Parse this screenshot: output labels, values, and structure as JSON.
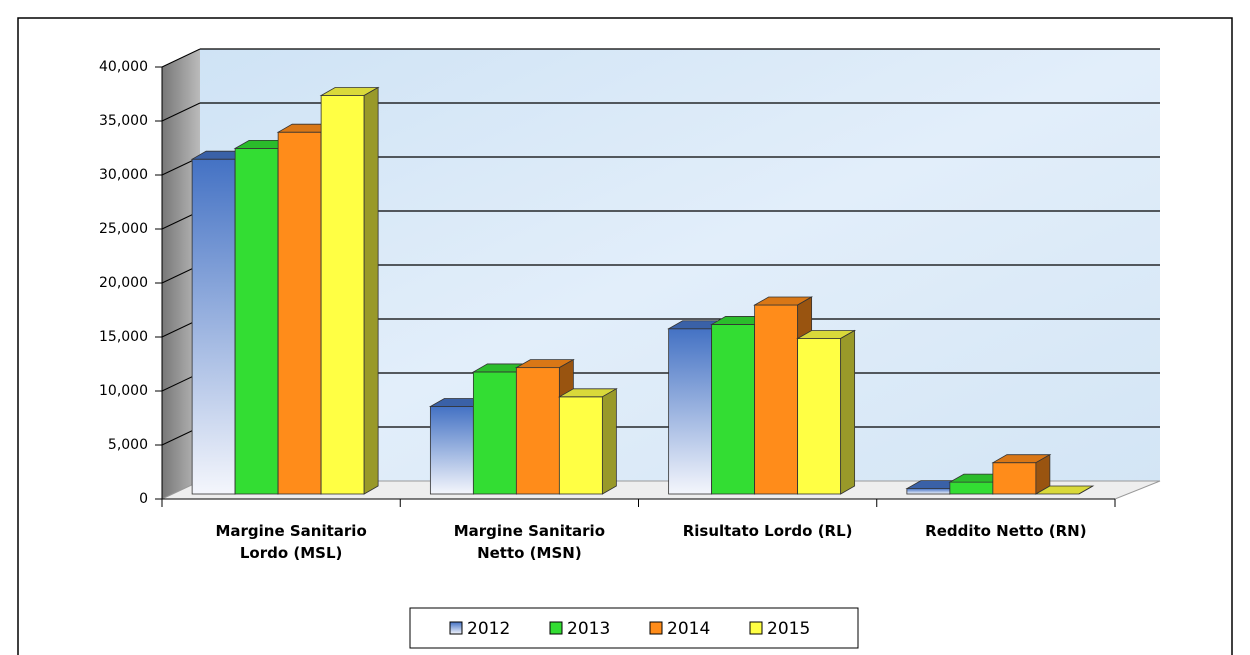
{
  "chart_data": {
    "type": "bar3d",
    "categories": [
      "Margine Sanitario Lordo (MSL)",
      "Margine Sanitario Netto (MSN)",
      "Risultato Lordo (RL)",
      "Reddito Netto (RN)"
    ],
    "series": [
      {
        "name": "2012",
        "color": "#4472c4",
        "values": [
          31000,
          8100,
          15300,
          500
        ]
      },
      {
        "name": "2013",
        "color": "#33dd33",
        "values": [
          32000,
          11300,
          15700,
          1100
        ]
      },
      {
        "name": "2014",
        "color": "#ff8c1a",
        "values": [
          33500,
          11700,
          17500,
          2900
        ]
      },
      {
        "name": "2015",
        "color": "#ffff44",
        "values": [
          36900,
          9000,
          14400,
          0
        ]
      }
    ],
    "ylim": [
      0,
      40000
    ],
    "yticks": [
      {
        "value": 0,
        "label": "0"
      },
      {
        "value": 5000,
        "label": "5,000"
      },
      {
        "value": 10000,
        "label": "10,000"
      },
      {
        "value": 15000,
        "label": "15,000"
      },
      {
        "value": 20000,
        "label": "20,000"
      },
      {
        "value": 25000,
        "label": "25,000"
      },
      {
        "value": 30000,
        "label": "30,000"
      },
      {
        "value": 35000,
        "label": "35,000"
      },
      {
        "value": 40000,
        "label": "40,000"
      }
    ],
    "grid": true,
    "legend": "bottom"
  }
}
